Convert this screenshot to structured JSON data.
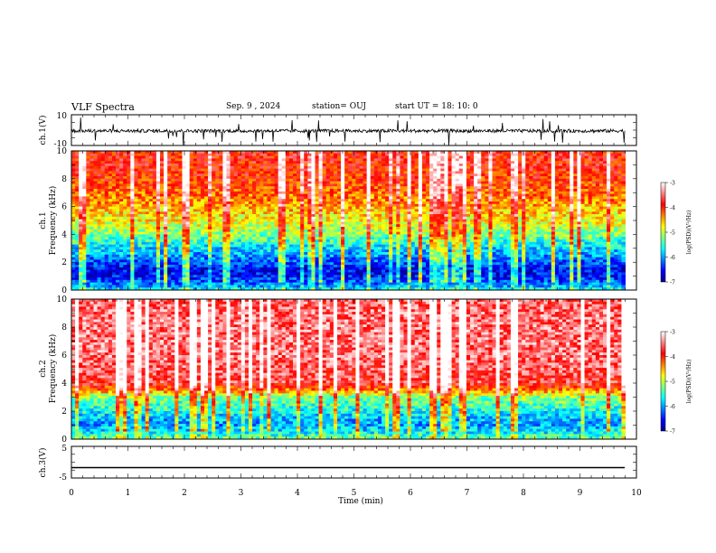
{
  "header": {
    "title": "VLF Spectra",
    "date": "Sep. 9 , 2024",
    "station": "station= OUJ",
    "start": "start  UT =   18: 10: 0"
  },
  "colors": {
    "jet_stops": [
      "#00008f",
      "#0000ff",
      "#0080ff",
      "#00ffff",
      "#80ff80",
      "#ffff00",
      "#ff8000",
      "#ff0000",
      "#ff8080",
      "#ffffff"
    ],
    "line": "#000000"
  },
  "chart_data": [
    {
      "id": "ch1-waveform",
      "type": "line",
      "ylabel": "ch.1(V)",
      "ylim": [
        -10,
        10
      ],
      "yticks": [
        "10",
        "-10"
      ],
      "baseline": -0.5,
      "xlim": [
        0,
        10
      ]
    },
    {
      "id": "ch1-spectrogram",
      "type": "heatmap",
      "ylabel": "ch.1\nFrequency (kHz)",
      "ylabel_line1": "ch.1",
      "ylabel_line2": "Frequency (kHz)",
      "ylim": [
        0,
        10
      ],
      "yticks": [
        "0",
        "2",
        "4",
        "6",
        "8",
        "10"
      ],
      "xlim": [
        0,
        10
      ],
      "data_extent_min": 9.8,
      "colorbar": {
        "label": "log(PSD)(V²/Hz)",
        "range": [
          -7,
          -3
        ],
        "ticks": [
          "-3",
          "-4",
          "-5",
          "-6",
          "-7"
        ]
      },
      "level_profile": [
        {
          "khz": 0.0,
          "level": -5.6
        },
        {
          "khz": 0.5,
          "level": -6.2
        },
        {
          "khz": 1.0,
          "level": -6.5
        },
        {
          "khz": 1.5,
          "level": -6.6
        },
        {
          "khz": 2.0,
          "level": -6.3
        },
        {
          "khz": 2.5,
          "level": -6.0
        },
        {
          "khz": 3.0,
          "level": -5.8
        },
        {
          "khz": 3.5,
          "level": -5.5
        },
        {
          "khz": 4.0,
          "level": -5.2
        },
        {
          "khz": 5.0,
          "level": -4.8
        },
        {
          "khz": 6.0,
          "level": -4.5
        },
        {
          "khz": 7.0,
          "level": -4.2
        },
        {
          "khz": 8.0,
          "level": -4.0
        },
        {
          "khz": 9.0,
          "level": -3.9
        },
        {
          "khz": 10.0,
          "level": -3.9
        }
      ]
    },
    {
      "id": "ch2-spectrogram",
      "type": "heatmap",
      "ylabel_line1": "ch.2",
      "ylabel_line2": "Frequency (kHz)",
      "ylim": [
        0,
        10
      ],
      "yticks": [
        "0",
        "2",
        "4",
        "6",
        "8",
        "10"
      ],
      "xlim": [
        0,
        10
      ],
      "data_extent_min": 9.8,
      "colorbar": {
        "label": "log(PSD)(V²/Hz)",
        "range": [
          -7,
          -3
        ],
        "ticks": [
          "-3",
          "-4",
          "-5",
          "-6",
          "-7"
        ]
      },
      "level_profile": [
        {
          "khz": 0.0,
          "level": -5.2
        },
        {
          "khz": 0.5,
          "level": -5.7
        },
        {
          "khz": 1.0,
          "level": -6.0
        },
        {
          "khz": 1.5,
          "level": -5.9
        },
        {
          "khz": 2.0,
          "level": -5.6
        },
        {
          "khz": 2.5,
          "level": -5.4
        },
        {
          "khz": 3.0,
          "level": -5.2
        },
        {
          "khz": 3.5,
          "level": -4.3
        },
        {
          "khz": 4.0,
          "level": -3.7
        },
        {
          "khz": 5.0,
          "level": -3.6
        },
        {
          "khz": 6.0,
          "level": -3.5
        },
        {
          "khz": 7.0,
          "level": -3.5
        },
        {
          "khz": 8.0,
          "level": -3.5
        },
        {
          "khz": 9.0,
          "level": -3.5
        },
        {
          "khz": 10.0,
          "level": -3.6
        }
      ]
    },
    {
      "id": "ch3-waveform",
      "type": "line",
      "ylabel": "ch.3(V)",
      "ylim": [
        -5,
        5
      ],
      "yticks": [
        "5",
        "-5"
      ],
      "baseline": -1.7,
      "xlim": [
        0,
        10
      ],
      "xlabel": "Time (min)",
      "xticks": [
        "0",
        "1",
        "2",
        "3",
        "4",
        "5",
        "6",
        "7",
        "8",
        "9",
        "10"
      ]
    }
  ]
}
